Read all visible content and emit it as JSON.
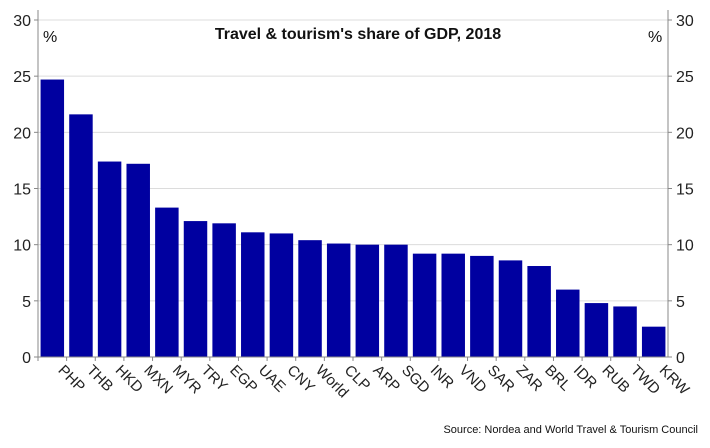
{
  "chart_data": {
    "type": "bar",
    "title": "Travel & tourism's share of GDP, 2018",
    "unit_left": "%",
    "unit_right": "%",
    "source": "Source: Nordea and World Travel & Tourism Council",
    "categories": [
      "PHP",
      "THB",
      "HKD",
      "MXN",
      "MYR",
      "TRY",
      "EGP",
      "UAE",
      "CNY",
      "World",
      "CLP",
      "ARP",
      "SGD",
      "INR",
      "VND",
      "SAR",
      "ZAR",
      "BRL",
      "IDR",
      "RUB",
      "TWD",
      "KRW"
    ],
    "values": [
      24.7,
      21.6,
      17.4,
      17.2,
      13.3,
      12.1,
      11.9,
      11.1,
      11.0,
      10.4,
      10.1,
      10.0,
      10.0,
      9.2,
      9.2,
      9.0,
      8.6,
      8.1,
      6.0,
      4.8,
      4.5,
      2.7
    ],
    "yticks": [
      0,
      5,
      10,
      15,
      20,
      25,
      30
    ],
    "ylim": [
      0,
      30
    ],
    "grid": true,
    "bar_color": "#0000A0"
  }
}
